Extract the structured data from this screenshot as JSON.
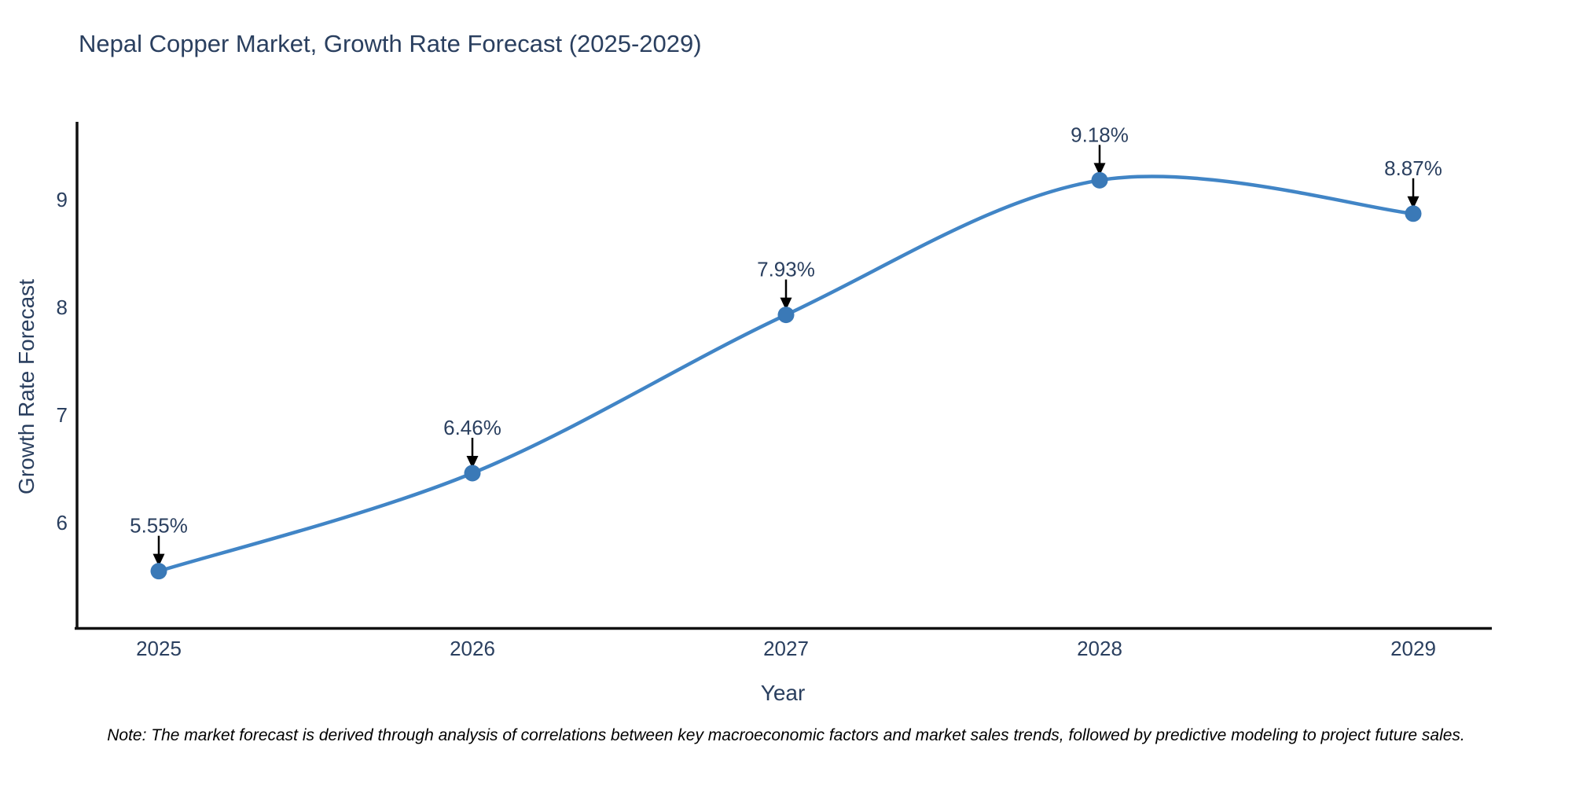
{
  "title": "Nepal Copper Market, Growth Rate Forecast (2025-2029)",
  "note": "Note: The market forecast is derived through analysis of correlations between key macroeconomic factors and market sales trends, followed by predictive modeling to project future sales.",
  "colors": {
    "line": "#4185c6",
    "marker": "#3a79b7",
    "text": "#2a3f5f",
    "axis": "#111111",
    "arrow": "#000000",
    "note_text": "#000000",
    "background": "#ffffff"
  },
  "chart_data": {
    "type": "line",
    "line_shape": "spline",
    "x": [
      "2025",
      "2026",
      "2027",
      "2028",
      "2029"
    ],
    "y": [
      5.55,
      6.46,
      7.93,
      9.18,
      8.87
    ],
    "point_labels": [
      "5.55%",
      "6.46%",
      "7.93%",
      "9.18%",
      "8.87%"
    ],
    "title": "Nepal Copper Market, Growth Rate Forecast (2025-2029)",
    "xlabel": "Year",
    "ylabel": "Growth Rate Forecast",
    "yticks": [
      6,
      7,
      8,
      9
    ],
    "ylim": [
      5.0,
      9.7
    ],
    "grid": false,
    "legend": "none",
    "annotations": "black arrows pointing down to each marker with percent labels above"
  }
}
